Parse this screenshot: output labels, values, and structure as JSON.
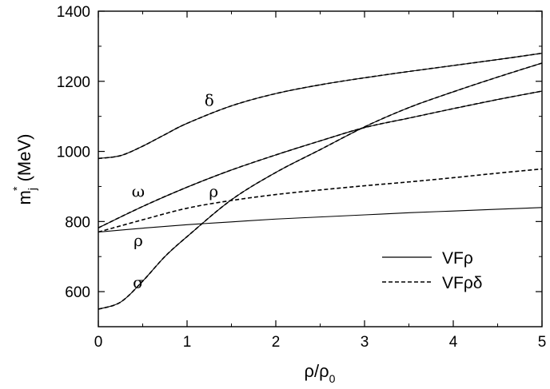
{
  "chart_data": {
    "type": "line",
    "xlabel_main": "ρ/ρ",
    "xlabel_sub": "0",
    "ylabel_main": "m",
    "ylabel_sup": "*",
    "ylabel_sub": "j",
    "ylabel_rest": " (MeV)",
    "xlim": [
      0,
      5
    ],
    "ylim": [
      500,
      1400
    ],
    "xticks": [
      0,
      1,
      2,
      3,
      4,
      5
    ],
    "yticks": [
      600,
      800,
      1000,
      1200,
      1400
    ],
    "legend": {
      "placement": "bottom-right",
      "entries": [
        {
          "label": "VFρ",
          "style": "solid"
        },
        {
          "label": "VFρδ",
          "style": "dashed"
        }
      ]
    },
    "annotations": [
      {
        "text": "δ",
        "x": 1.25,
        "y": 1130
      },
      {
        "text": "ω",
        "x": 0.45,
        "y": 870
      },
      {
        "text": "ρ",
        "x": 1.3,
        "y": 870
      },
      {
        "text": "ρ",
        "x": 0.45,
        "y": 730
      },
      {
        "text": "σ",
        "x": 0.45,
        "y": 610
      }
    ],
    "series": [
      {
        "style": "solid",
        "x": [
          0,
          0.5,
          1,
          1.5,
          2,
          2.5,
          3,
          3.5,
          4,
          4.5,
          5
        ],
        "y": [
          782,
          843,
          898,
          947,
          990,
          1030,
          1068,
          1095,
          1122,
          1148,
          1172
        ]
      },
      {
        "style": "dashed",
        "x": [
          0,
          0.5,
          1,
          1.5,
          2,
          2.5,
          3,
          3.5,
          4,
          4.5,
          5
        ],
        "y": [
          782,
          843,
          898,
          947,
          990,
          1030,
          1068,
          1095,
          1122,
          1148,
          1172
        ]
      },
      {
        "style": "solid",
        "x": [
          0,
          0.5,
          1,
          1.5,
          2,
          2.5,
          3,
          3.5,
          4,
          4.5,
          5
        ],
        "y": [
          770,
          781,
          791,
          799,
          807,
          813,
          819,
          825,
          830,
          835,
          840
        ]
      },
      {
        "style": "dashed",
        "x": [
          0,
          0.5,
          1,
          1.5,
          2,
          2.5,
          3,
          3.5,
          4,
          4.5,
          5
        ],
        "y": [
          770,
          805,
          838,
          860,
          877,
          890,
          902,
          913,
          925,
          938,
          950
        ]
      },
      {
        "style": "solid",
        "x": [
          0,
          0.25,
          0.5,
          0.75,
          1,
          1.5,
          2,
          2.5,
          3,
          3.5,
          4,
          4.5,
          5
        ],
        "y": [
          550,
          570,
          630,
          700,
          757,
          862,
          940,
          1005,
          1070,
          1125,
          1170,
          1212,
          1252
        ]
      },
      {
        "style": "dashed",
        "x": [
          0,
          0.25,
          0.5,
          0.75,
          1,
          1.5,
          2,
          2.5,
          3,
          3.5,
          4,
          4.5,
          5
        ],
        "y": [
          550,
          570,
          630,
          700,
          757,
          862,
          940,
          1005,
          1070,
          1125,
          1170,
          1212,
          1252
        ]
      },
      {
        "style": "solid",
        "x": [
          0,
          0.25,
          0.5,
          0.75,
          1,
          1.5,
          2,
          2.5,
          3,
          3.5,
          4,
          4.5,
          5
        ],
        "y": [
          980,
          988,
          1015,
          1048,
          1080,
          1130,
          1165,
          1190,
          1210,
          1228,
          1245,
          1262,
          1280
        ]
      },
      {
        "style": "dashed",
        "x": [
          0,
          0.25,
          0.5,
          0.75,
          1,
          1.5,
          2,
          2.5,
          3,
          3.5,
          4,
          4.5,
          5
        ],
        "y": [
          980,
          988,
          1015,
          1048,
          1080,
          1130,
          1165,
          1190,
          1210,
          1228,
          1245,
          1262,
          1280
        ]
      }
    ]
  }
}
